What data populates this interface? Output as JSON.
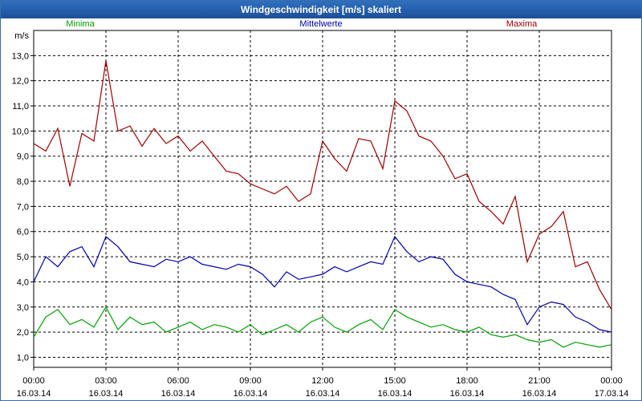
{
  "window": {
    "title": "Windgeschwindigkeit [m/s] skaliert"
  },
  "chart_data": {
    "type": "line",
    "title": "Windgeschwindigkeit [m/s] skaliert",
    "ylabel": "m/s",
    "xlabel": "",
    "ylim": [
      0.6,
      14.0
    ],
    "xlim": [
      0,
      24
    ],
    "grid": true,
    "legend_placement": "top",
    "x_ticks": [
      {
        "x": 0,
        "time": "00:00",
        "date": "16.03.14"
      },
      {
        "x": 3,
        "time": "03:00",
        "date": "16.03.14"
      },
      {
        "x": 6,
        "time": "06:00",
        "date": "16.03.14"
      },
      {
        "x": 9,
        "time": "09:00",
        "date": "16.03.14"
      },
      {
        "x": 12,
        "time": "12:00",
        "date": "16.03.14"
      },
      {
        "x": 15,
        "time": "15:00",
        "date": "16.03.14"
      },
      {
        "x": 18,
        "time": "18:00",
        "date": "16.03.14"
      },
      {
        "x": 21,
        "time": "21:00",
        "date": "16.03.14"
      },
      {
        "x": 24,
        "time": "00:00",
        "date": "17.03.14"
      }
    ],
    "y_ticks": [
      {
        "v": 1,
        "label": "1,0"
      },
      {
        "v": 2,
        "label": "2,0"
      },
      {
        "v": 3,
        "label": "3,0"
      },
      {
        "v": 4,
        "label": "4,0"
      },
      {
        "v": 5,
        "label": "5,0"
      },
      {
        "v": 6,
        "label": "6,0"
      },
      {
        "v": 7,
        "label": "7,0"
      },
      {
        "v": 8,
        "label": "8,0"
      },
      {
        "v": 9,
        "label": "9,0"
      },
      {
        "v": 10,
        "label": "10,0"
      },
      {
        "v": 11,
        "label": "11,0"
      },
      {
        "v": 12,
        "label": "12,0"
      },
      {
        "v": 13,
        "label": "13,0"
      }
    ],
    "series": [
      {
        "name": "Minima",
        "color": "#00a000",
        "x": [
          0,
          0.5,
          1,
          1.5,
          2,
          2.5,
          3,
          3.5,
          4,
          4.5,
          5,
          5.5,
          6,
          6.5,
          7,
          7.5,
          8,
          8.5,
          9,
          9.5,
          10,
          10.5,
          11,
          11.5,
          12,
          12.5,
          13,
          13.5,
          14,
          14.5,
          15,
          15.5,
          16,
          16.5,
          17,
          17.5,
          18,
          18.5,
          19,
          19.5,
          20,
          20.5,
          21,
          21.5,
          22,
          22.5,
          23,
          23.5,
          24
        ],
        "values": [
          1.8,
          2.6,
          2.9,
          2.3,
          2.5,
          2.2,
          3.0,
          2.1,
          2.6,
          2.3,
          2.4,
          2.0,
          2.2,
          2.4,
          2.1,
          2.3,
          2.2,
          2.0,
          2.3,
          1.9,
          2.1,
          2.3,
          2.0,
          2.4,
          2.6,
          2.2,
          2.0,
          2.3,
          2.5,
          2.1,
          2.9,
          2.6,
          2.4,
          2.2,
          2.3,
          2.1,
          2.0,
          2.2,
          1.9,
          1.8,
          1.9,
          1.7,
          1.6,
          1.7,
          1.4,
          1.6,
          1.5,
          1.4,
          1.5
        ]
      },
      {
        "name": "Mittelwerte",
        "color": "#0000b0",
        "x": [
          0,
          0.5,
          1,
          1.5,
          2,
          2.5,
          3,
          3.5,
          4,
          4.5,
          5,
          5.5,
          6,
          6.5,
          7,
          7.5,
          8,
          8.5,
          9,
          9.5,
          10,
          10.5,
          11,
          11.5,
          12,
          12.5,
          13,
          13.5,
          14,
          14.5,
          15,
          15.5,
          16,
          16.5,
          17,
          17.5,
          18,
          18.5,
          19,
          19.5,
          20,
          20.5,
          21,
          21.5,
          22,
          22.5,
          23,
          23.5,
          24
        ],
        "values": [
          4.0,
          5.0,
          4.6,
          5.2,
          5.4,
          4.6,
          5.8,
          5.4,
          4.8,
          4.7,
          4.6,
          4.9,
          4.8,
          5.0,
          4.7,
          4.6,
          4.5,
          4.7,
          4.6,
          4.3,
          3.8,
          4.4,
          4.1,
          4.2,
          4.3,
          4.6,
          4.4,
          4.6,
          4.8,
          4.7,
          5.8,
          5.2,
          4.8,
          5.0,
          4.9,
          4.3,
          4.0,
          3.9,
          3.8,
          3.5,
          3.3,
          2.3,
          3.0,
          3.2,
          3.1,
          2.6,
          2.4,
          2.1,
          2.0
        ]
      },
      {
        "name": "Maxima",
        "color": "#a00000",
        "x": [
          0,
          0.5,
          1,
          1.5,
          2,
          2.5,
          3,
          3.5,
          4,
          4.5,
          5,
          5.5,
          6,
          6.5,
          7,
          7.5,
          8,
          8.5,
          9,
          9.5,
          10,
          10.5,
          11,
          11.5,
          12,
          12.5,
          13,
          13.5,
          14,
          14.5,
          15,
          15.5,
          16,
          16.5,
          17,
          17.5,
          18,
          18.5,
          19,
          19.5,
          20,
          20.5,
          21,
          21.5,
          22,
          22.5,
          23,
          23.5,
          24
        ],
        "values": [
          9.5,
          9.2,
          10.1,
          7.8,
          9.9,
          9.6,
          12.8,
          10.0,
          10.2,
          9.4,
          10.1,
          9.5,
          9.8,
          9.2,
          9.6,
          9.0,
          8.4,
          8.3,
          7.9,
          7.7,
          7.5,
          7.8,
          7.2,
          7.5,
          9.6,
          8.9,
          8.4,
          9.7,
          9.6,
          8.5,
          11.2,
          10.8,
          9.8,
          9.6,
          9.0,
          8.1,
          8.3,
          7.2,
          6.8,
          6.3,
          7.4,
          4.8,
          5.9,
          6.2,
          6.8,
          4.6,
          4.8,
          3.7,
          2.9
        ]
      }
    ]
  }
}
